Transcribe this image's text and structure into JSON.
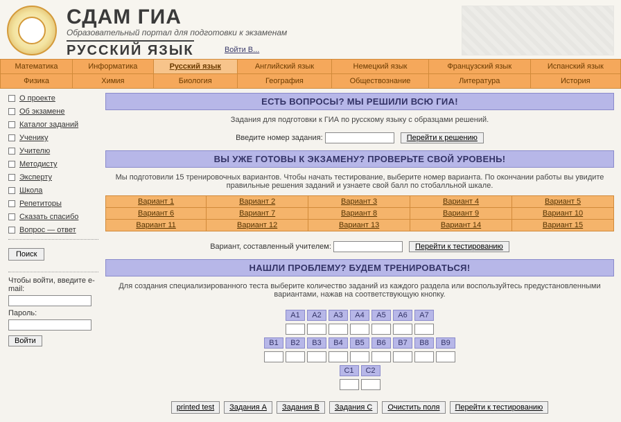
{
  "header": {
    "title": "СДАМ ГИА",
    "tagline": "Образовательный портал для подготовки к экзаменам",
    "subject": "РУССКИЙ ЯЗЫК",
    "login_link": "Войти В..."
  },
  "topnav": {
    "row1": [
      "Математика",
      "Информатика",
      "Русский язык",
      "Английский язык",
      "Немецкий язык",
      "Французский язык",
      "Испанский язык"
    ],
    "row2": [
      "Физика",
      "Химия",
      "Биология",
      "География",
      "Обществознание",
      "Литература",
      "История"
    ],
    "active": 2
  },
  "sidebar": {
    "items": [
      "О проекте",
      "Об экзамене",
      "Каталог заданий",
      "Ученику",
      "Учителю",
      "Методисту",
      "Эксперту",
      "Школа",
      "Репетиторы",
      "Сказать спасибо",
      "Вопрос — ответ"
    ],
    "search_button": "Поиск",
    "login_prompt": "Чтобы войти, введите е-mail:",
    "password_label": "Пароль:",
    "login_buttons": [
      "Войти"
    ]
  },
  "main": {
    "block1": {
      "banner": "ЕСТЬ ВОПРОСЫ? МЫ РЕШИЛИ ВСЮ ГИА!",
      "desc": "Задания для подготовки к ГИА по русскому языку с образцами решений.",
      "field_label": "Введите номер задания:",
      "button": "Перейти к решению"
    },
    "block2": {
      "banner": "ВЫ УЖЕ ГОТОВЫ К ЭКЗАМЕНУ? ПРОВЕРЬТЕ СВОЙ УРОВЕНЬ!",
      "desc": "Мы подготовили 15 тренировочных вариантов. Чтобы начать тестирование, выберите номер варианта. По окончании работы вы увидите правильные решения заданий и узнаете свой балл по стобалльной шкале.",
      "variants": [
        [
          "Вариант 1",
          "Вариант 2",
          "Вариант 3",
          "Вариант 4",
          "Вариант 5"
        ],
        [
          "Вариант 6",
          "Вариант 7",
          "Вариант 8",
          "Вариант 9",
          "Вариант 10"
        ],
        [
          "Вариант 11",
          "Вариант 12",
          "Вариант 13",
          "Вариант 14",
          "Вариант 15"
        ]
      ],
      "teacher_label": "Вариант, составленный учителем:",
      "teacher_button": "Перейти к тестированию"
    },
    "block3": {
      "banner": "НАШЛИ ПРОБЛЕМУ? БУДЕМ ТРЕНИРОВАТЬСЯ!",
      "desc": "Для создания специализированного теста выберите количество заданий из каждого раздела или воспользуйтесь предустановленными вариантами, нажав на соответствующую кнопку.",
      "rows": [
        [
          "A1",
          "A2",
          "A3",
          "A4",
          "A5",
          "A6",
          "A7"
        ],
        [
          "B1",
          "B2",
          "B3",
          "B4",
          "B5",
          "B6",
          "B7",
          "B8",
          "B9"
        ],
        [
          "C1",
          "C2"
        ]
      ],
      "buttons": [
        "printed test",
        "Задания A",
        "Задания B",
        "Задания C",
        "Очистить поля",
        "Перейти к тестированию"
      ]
    }
  },
  "colors": {
    "banner_bg": "#b7b7e8",
    "banner_border": "#8a8acb",
    "orange_bg": "#f5b46b",
    "orange_border": "#d18a3a",
    "page_bg": "#f5f3ee"
  }
}
